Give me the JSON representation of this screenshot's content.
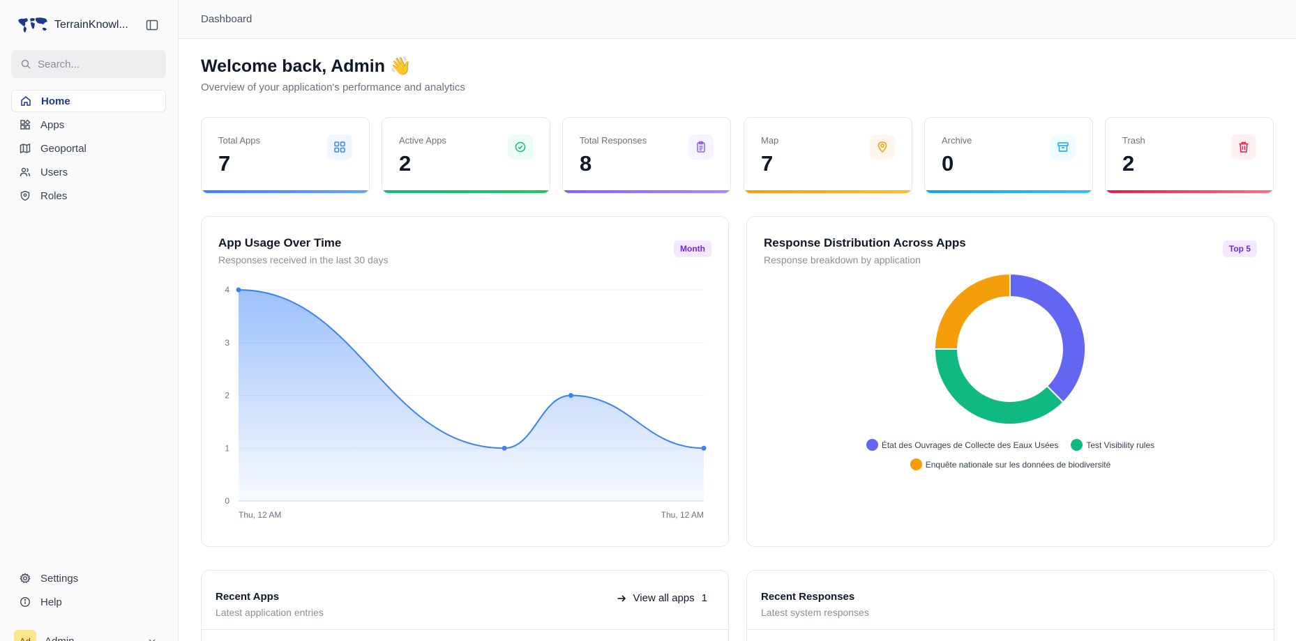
{
  "app": {
    "name": "TerrainKnowl..."
  },
  "search": {
    "placeholder": "Search..."
  },
  "nav": {
    "items": [
      {
        "label": "Home",
        "icon": "home-icon",
        "active": true
      },
      {
        "label": "Apps",
        "icon": "apps-icon",
        "active": false
      },
      {
        "label": "Geoportal",
        "icon": "map-icon",
        "active": false
      },
      {
        "label": "Users",
        "icon": "users-icon",
        "active": false
      },
      {
        "label": "Roles",
        "icon": "shield-icon",
        "active": false
      }
    ],
    "bottom": [
      {
        "label": "Settings",
        "icon": "gear-icon"
      },
      {
        "label": "Help",
        "icon": "help-icon"
      }
    ]
  },
  "user": {
    "initials": "Ad",
    "name": "Admin"
  },
  "breadcrumb": "Dashboard",
  "welcome": {
    "title": "Welcome back, Admin 👋",
    "subtitle": "Overview of your application's performance and analytics"
  },
  "stats": [
    {
      "label": "Total Apps",
      "value": "7",
      "icon": "grid-icon",
      "color": "#3b82f6",
      "bg": "#eff6ff"
    },
    {
      "label": "Active Apps",
      "value": "2",
      "icon": "check-circle-icon",
      "color": "#10b981",
      "bg": "#ecfdf5"
    },
    {
      "label": "Total Responses",
      "value": "8",
      "icon": "clipboard-icon",
      "color": "#8b5cf6",
      "bg": "#f5f3ff"
    },
    {
      "label": "Map",
      "value": "7",
      "icon": "map-pin-icon",
      "color": "#f59e0b",
      "bg": "#fff7ed"
    },
    {
      "label": "Archive",
      "value": "0",
      "icon": "archive-icon",
      "color": "#0ea5e9",
      "bg": "#ecfeff"
    },
    {
      "label": "Trash",
      "value": "2",
      "icon": "trash-icon",
      "color": "#e11d48",
      "bg": "#fff1f2"
    }
  ],
  "usage": {
    "title": "App Usage Over Time",
    "subtitle": "Responses received in the last 30 days",
    "badge": "Month"
  },
  "distribution": {
    "title": "Response Distribution Across Apps",
    "subtitle": "Response breakdown by application",
    "badge": "Top 5"
  },
  "chart_data": [
    {
      "type": "area",
      "x_tick_labels": [
        "Thu, 12 AM",
        "Thu, 12 AM"
      ],
      "y_ticks": [
        "0",
        "1",
        "2",
        "3",
        "4"
      ],
      "ylim": [
        0,
        4
      ],
      "x": [
        0,
        4,
        5,
        7
      ],
      "values": [
        4,
        1,
        2,
        1
      ],
      "grid": true,
      "color": "#3b82f6"
    },
    {
      "type": "pie",
      "donut": true,
      "series": [
        {
          "name": "État des Ouvrages de Collecte des Eaux Usées",
          "value": 3,
          "color": "#6366f1"
        },
        {
          "name": "Test Visibility rules",
          "value": 3,
          "color": "#10b981"
        },
        {
          "name": "Enquête nationale sur les données de biodiversité",
          "value": 2,
          "color": "#f59e0b"
        }
      ],
      "legend": "bottom"
    }
  ],
  "recent_apps": {
    "title": "Recent Apps",
    "subtitle": "Latest application entries",
    "view_all": "View all apps",
    "count": "1"
  },
  "recent_responses": {
    "title": "Recent Responses",
    "subtitle": "Latest system responses"
  }
}
